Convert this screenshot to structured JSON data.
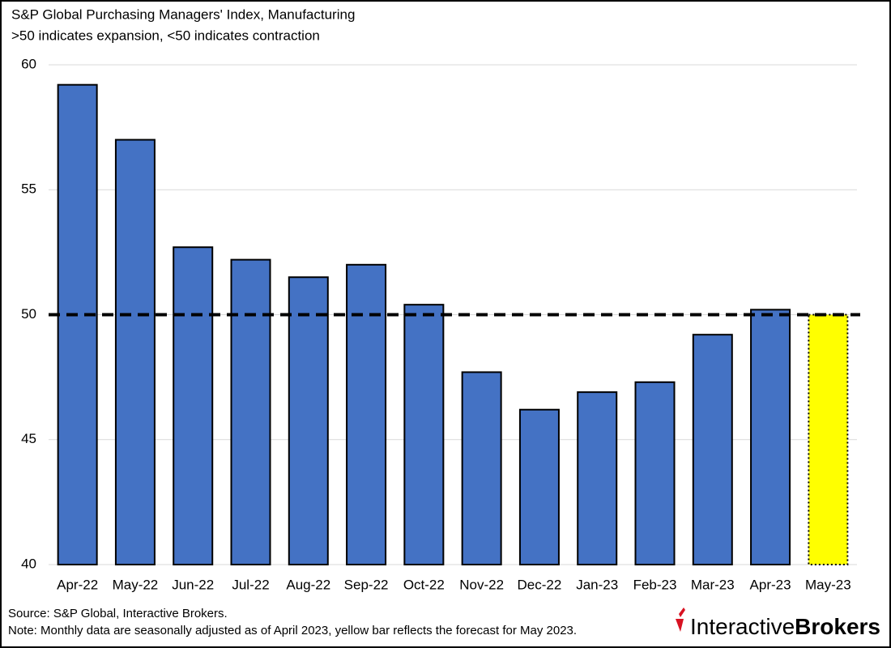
{
  "chart_data": {
    "type": "bar",
    "title": "S&P Global Purchasing Managers' Index, Manufacturing",
    "subtitle": ">50 indicates expansion, <50 indicates contraction",
    "categories": [
      "Apr-22",
      "May-22",
      "Jun-22",
      "Jul-22",
      "Aug-22",
      "Sep-22",
      "Oct-22",
      "Nov-22",
      "Dec-22",
      "Jan-23",
      "Feb-23",
      "Mar-23",
      "Apr-23",
      "May-23"
    ],
    "values": [
      59.2,
      57.0,
      52.7,
      52.2,
      51.5,
      52.0,
      50.4,
      47.7,
      46.2,
      46.9,
      47.3,
      49.2,
      50.2,
      50.0
    ],
    "colors": [
      "#4472c4",
      "#4472c4",
      "#4472c4",
      "#4472c4",
      "#4472c4",
      "#4472c4",
      "#4472c4",
      "#4472c4",
      "#4472c4",
      "#4472c4",
      "#4472c4",
      "#4472c4",
      "#4472c4",
      "#ffff00"
    ],
    "ylim": [
      40,
      60
    ],
    "yticks": [
      40,
      45,
      50,
      55,
      60
    ],
    "grid": true,
    "reference_line": 50,
    "source": "Source: S&P Global, Interactive Brokers.",
    "note": "Note: Monthly data are seasonally adjusted as of April 2023, yellow bar reflects the forecast for May 2023.",
    "logo": [
      "Interactive",
      "Brokers"
    ]
  }
}
